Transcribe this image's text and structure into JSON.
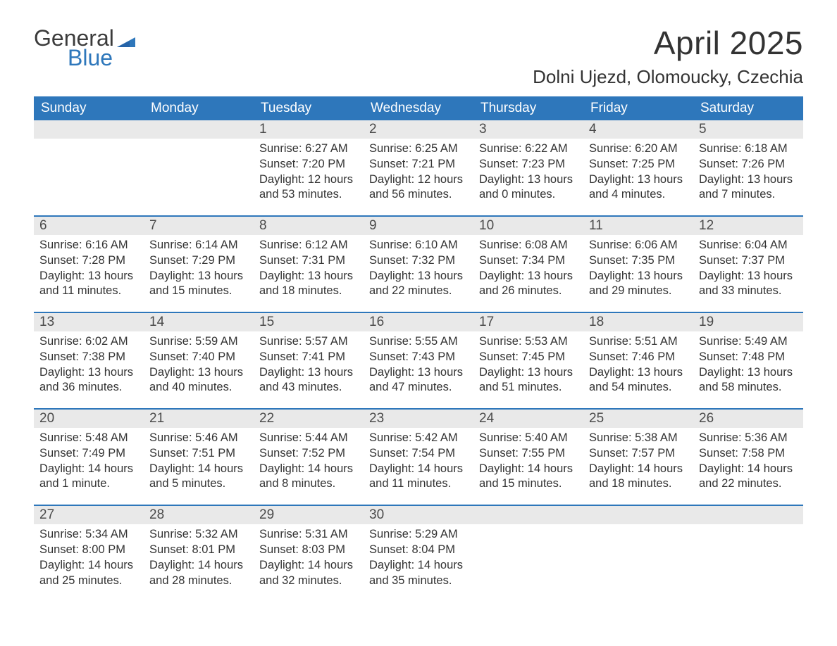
{
  "logo": {
    "line1": "General",
    "line2": "Blue",
    "flag_color": "#2e77bb"
  },
  "title": "April 2025",
  "location": "Dolni Ujezd, Olomoucky, Czechia",
  "colors": {
    "header_bg": "#2e77bb",
    "header_text": "#ffffff",
    "daynum_bg": "#e9e9e9",
    "text": "#333333",
    "week_border": "#2e77bb",
    "background": "#ffffff"
  },
  "typography": {
    "title_fontsize": 46,
    "location_fontsize": 26,
    "dow_fontsize": 19,
    "daynum_fontsize": 19,
    "body_fontsize": 16.5
  },
  "dow": [
    "Sunday",
    "Monday",
    "Tuesday",
    "Wednesday",
    "Thursday",
    "Friday",
    "Saturday"
  ],
  "weeks": [
    [
      null,
      null,
      {
        "n": "1",
        "sunrise": "6:27 AM",
        "sunset": "7:20 PM",
        "day_h": "12",
        "day_m": "53 minutes"
      },
      {
        "n": "2",
        "sunrise": "6:25 AM",
        "sunset": "7:21 PM",
        "day_h": "12",
        "day_m": "56 minutes"
      },
      {
        "n": "3",
        "sunrise": "6:22 AM",
        "sunset": "7:23 PM",
        "day_h": "13",
        "day_m": "0 minutes"
      },
      {
        "n": "4",
        "sunrise": "6:20 AM",
        "sunset": "7:25 PM",
        "day_h": "13",
        "day_m": "4 minutes"
      },
      {
        "n": "5",
        "sunrise": "6:18 AM",
        "sunset": "7:26 PM",
        "day_h": "13",
        "day_m": "7 minutes"
      }
    ],
    [
      {
        "n": "6",
        "sunrise": "6:16 AM",
        "sunset": "7:28 PM",
        "day_h": "13",
        "day_m": "11 minutes"
      },
      {
        "n": "7",
        "sunrise": "6:14 AM",
        "sunset": "7:29 PM",
        "day_h": "13",
        "day_m": "15 minutes"
      },
      {
        "n": "8",
        "sunrise": "6:12 AM",
        "sunset": "7:31 PM",
        "day_h": "13",
        "day_m": "18 minutes"
      },
      {
        "n": "9",
        "sunrise": "6:10 AM",
        "sunset": "7:32 PM",
        "day_h": "13",
        "day_m": "22 minutes"
      },
      {
        "n": "10",
        "sunrise": "6:08 AM",
        "sunset": "7:34 PM",
        "day_h": "13",
        "day_m": "26 minutes"
      },
      {
        "n": "11",
        "sunrise": "6:06 AM",
        "sunset": "7:35 PM",
        "day_h": "13",
        "day_m": "29 minutes"
      },
      {
        "n": "12",
        "sunrise": "6:04 AM",
        "sunset": "7:37 PM",
        "day_h": "13",
        "day_m": "33 minutes"
      }
    ],
    [
      {
        "n": "13",
        "sunrise": "6:02 AM",
        "sunset": "7:38 PM",
        "day_h": "13",
        "day_m": "36 minutes"
      },
      {
        "n": "14",
        "sunrise": "5:59 AM",
        "sunset": "7:40 PM",
        "day_h": "13",
        "day_m": "40 minutes"
      },
      {
        "n": "15",
        "sunrise": "5:57 AM",
        "sunset": "7:41 PM",
        "day_h": "13",
        "day_m": "43 minutes"
      },
      {
        "n": "16",
        "sunrise": "5:55 AM",
        "sunset": "7:43 PM",
        "day_h": "13",
        "day_m": "47 minutes"
      },
      {
        "n": "17",
        "sunrise": "5:53 AM",
        "sunset": "7:45 PM",
        "day_h": "13",
        "day_m": "51 minutes"
      },
      {
        "n": "18",
        "sunrise": "5:51 AM",
        "sunset": "7:46 PM",
        "day_h": "13",
        "day_m": "54 minutes"
      },
      {
        "n": "19",
        "sunrise": "5:49 AM",
        "sunset": "7:48 PM",
        "day_h": "13",
        "day_m": "58 minutes"
      }
    ],
    [
      {
        "n": "20",
        "sunrise": "5:48 AM",
        "sunset": "7:49 PM",
        "day_h": "14",
        "day_m": "1 minute"
      },
      {
        "n": "21",
        "sunrise": "5:46 AM",
        "sunset": "7:51 PM",
        "day_h": "14",
        "day_m": "5 minutes"
      },
      {
        "n": "22",
        "sunrise": "5:44 AM",
        "sunset": "7:52 PM",
        "day_h": "14",
        "day_m": "8 minutes"
      },
      {
        "n": "23",
        "sunrise": "5:42 AM",
        "sunset": "7:54 PM",
        "day_h": "14",
        "day_m": "11 minutes"
      },
      {
        "n": "24",
        "sunrise": "5:40 AM",
        "sunset": "7:55 PM",
        "day_h": "14",
        "day_m": "15 minutes"
      },
      {
        "n": "25",
        "sunrise": "5:38 AM",
        "sunset": "7:57 PM",
        "day_h": "14",
        "day_m": "18 minutes"
      },
      {
        "n": "26",
        "sunrise": "5:36 AM",
        "sunset": "7:58 PM",
        "day_h": "14",
        "day_m": "22 minutes"
      }
    ],
    [
      {
        "n": "27",
        "sunrise": "5:34 AM",
        "sunset": "8:00 PM",
        "day_h": "14",
        "day_m": "25 minutes"
      },
      {
        "n": "28",
        "sunrise": "5:32 AM",
        "sunset": "8:01 PM",
        "day_h": "14",
        "day_m": "28 minutes"
      },
      {
        "n": "29",
        "sunrise": "5:31 AM",
        "sunset": "8:03 PM",
        "day_h": "14",
        "day_m": "32 minutes"
      },
      {
        "n": "30",
        "sunrise": "5:29 AM",
        "sunset": "8:04 PM",
        "day_h": "14",
        "day_m": "35 minutes"
      },
      null,
      null,
      null
    ]
  ],
  "labels": {
    "sunrise": "Sunrise: ",
    "sunset": "Sunset: ",
    "daylight1": "Daylight: ",
    "daylight2": " hours",
    "daylight3": "and ",
    "daylight4": "."
  }
}
